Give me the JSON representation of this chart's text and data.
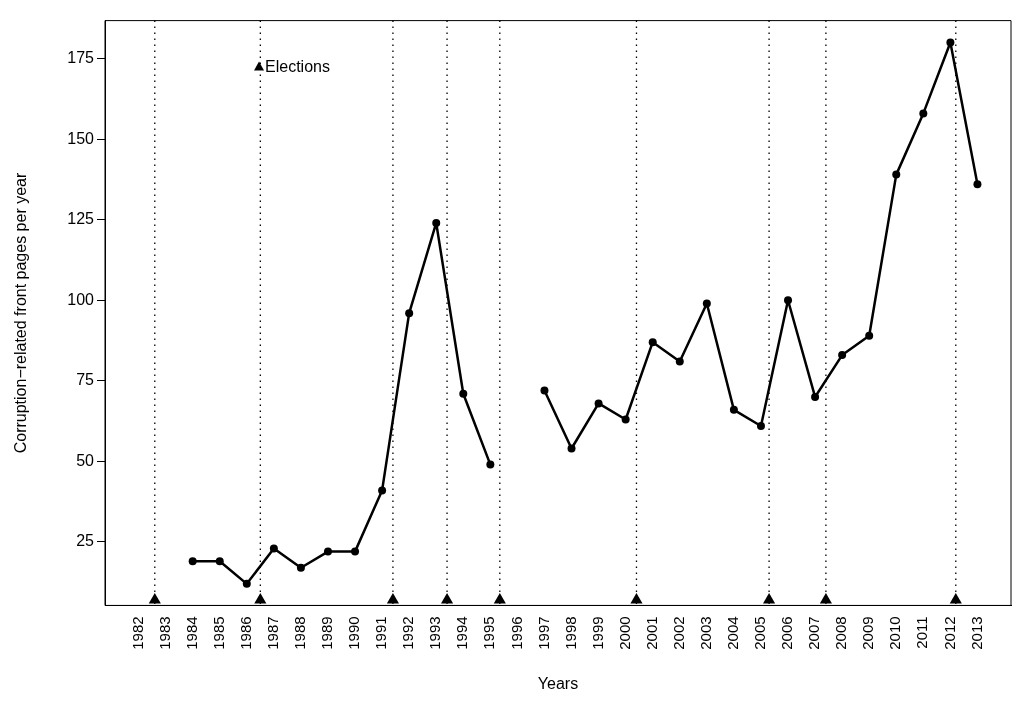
{
  "chart_data": {
    "type": "line",
    "xlabel": "Years",
    "ylabel": "Corruption−related front pages per year",
    "x": [
      1984,
      1985,
      1986,
      1987,
      1988,
      1989,
      1990,
      1991,
      1992,
      1993,
      1994,
      1995,
      1996,
      1997,
      1998,
      1999,
      2000,
      2001,
      2002,
      2003,
      2004,
      2005,
      2006,
      2007,
      2008,
      2009,
      2010,
      2011,
      2012,
      2013
    ],
    "series": [
      {
        "color": "#000000",
        "marker": "circle",
        "line_style": "solid",
        "values": [
          19,
          19,
          12,
          23,
          17,
          22,
          22,
          41,
          96,
          124,
          71,
          49,
          null,
          72,
          54,
          68,
          63,
          87,
          81,
          99,
          66,
          61,
          100,
          70,
          83,
          89,
          139,
          158,
          180,
          136
        ]
      },
      {
        "name": "Elections",
        "type": "scatter",
        "color": "#000000",
        "marker": "triangle",
        "x": [
          1982.6,
          1986.5,
          1991.4,
          1993.4,
          1995.35,
          2000.4,
          2005.3,
          2007.4,
          2012.2
        ],
        "values": [
          7,
          7,
          7,
          7,
          7,
          7,
          7,
          7,
          7
        ]
      }
    ],
    "ref_lines": [
      {
        "axis": "x",
        "value": 1982.6,
        "color": "#000000",
        "line_style": "dotted"
      },
      {
        "axis": "x",
        "value": 1986.5,
        "color": "#000000",
        "line_style": "dotted"
      },
      {
        "axis": "x",
        "value": 1991.4,
        "color": "#000000",
        "line_style": "dotted"
      },
      {
        "axis": "x",
        "value": 1993.4,
        "color": "#000000",
        "line_style": "dotted"
      },
      {
        "axis": "x",
        "value": 1995.35,
        "color": "#000000",
        "line_style": "dotted"
      },
      {
        "axis": "x",
        "value": 2000.4,
        "color": "#000000",
        "line_style": "dotted"
      },
      {
        "axis": "x",
        "value": 2005.3,
        "color": "#000000",
        "line_style": "dotted"
      },
      {
        "axis": "x",
        "value": 2007.4,
        "color": "#000000",
        "line_style": "dotted"
      },
      {
        "axis": "x",
        "value": 2012.2,
        "color": "#000000",
        "line_style": "dotted"
      }
    ],
    "xlim": [
      1980.76,
      2014.24
    ],
    "ylim": [
      5.3,
      186.8
    ],
    "xticks": [
      1982,
      1983,
      1984,
      1985,
      1986,
      1987,
      1988,
      1989,
      1990,
      1991,
      1992,
      1993,
      1994,
      1995,
      1996,
      1997,
      1998,
      1999,
      2000,
      2001,
      2002,
      2003,
      2004,
      2005,
      2006,
      2007,
      2008,
      2009,
      2010,
      2011,
      2012,
      2013
    ],
    "yticks": [
      25,
      50,
      75,
      100,
      125,
      150,
      175
    ],
    "grid": false,
    "legend": "top left"
  }
}
